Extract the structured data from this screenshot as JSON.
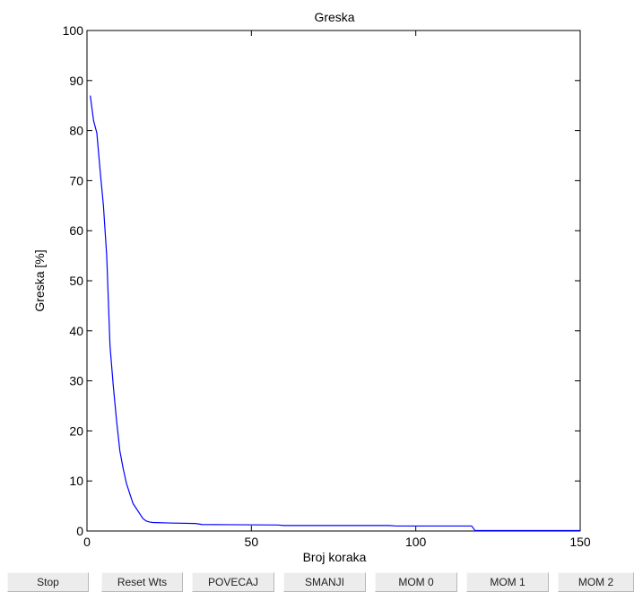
{
  "chart_data": {
    "type": "line",
    "title": "Greska",
    "xlabel": "Broj koraka",
    "ylabel": "Greska [%]",
    "xlim": [
      0,
      150
    ],
    "ylim": [
      0,
      100
    ],
    "xticks": [
      0,
      50,
      100,
      150
    ],
    "yticks": [
      0,
      10,
      20,
      30,
      40,
      50,
      60,
      70,
      80,
      90,
      100
    ],
    "grid": false,
    "series": [
      {
        "color": "#0000ff",
        "x": [
          1,
          2,
          3,
          4,
          5,
          6,
          7,
          8,
          9,
          10,
          11,
          12,
          13,
          14,
          15,
          16,
          17,
          18,
          19,
          20,
          25,
          33,
          35,
          58,
          60,
          92,
          94,
          117,
          118,
          150
        ],
        "y": [
          87,
          82,
          79.5,
          72,
          65,
          55,
          37,
          29,
          22,
          16,
          12.5,
          9.5,
          7.5,
          5.5,
          4.5,
          3.5,
          2.5,
          2,
          1.8,
          1.7,
          1.6,
          1.5,
          1.3,
          1.2,
          1.1,
          1.1,
          1.0,
          1.0,
          0.1,
          0.1
        ]
      }
    ]
  },
  "toolbar": {
    "buttons": [
      {
        "label": "Stop"
      },
      {
        "label": "Reset Wts"
      },
      {
        "label": "POVECAJ"
      },
      {
        "label": "SMANJI"
      },
      {
        "label": "MOM  0"
      },
      {
        "label": "MOM  1"
      },
      {
        "label": "MOM  2"
      }
    ]
  }
}
